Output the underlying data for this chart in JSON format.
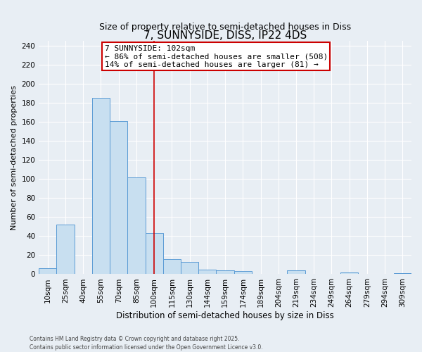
{
  "title": "7, SUNNYSIDE, DISS, IP22 4DS",
  "subtitle": "Size of property relative to semi-detached houses in Diss",
  "xlabel": "Distribution of semi-detached houses by size in Diss",
  "ylabel": "Number of semi-detached properties",
  "bar_labels": [
    "10sqm",
    "25sqm",
    "40sqm",
    "55sqm",
    "70sqm",
    "85sqm",
    "100sqm",
    "115sqm",
    "130sqm",
    "144sqm",
    "159sqm",
    "174sqm",
    "189sqm",
    "204sqm",
    "219sqm",
    "234sqm",
    "249sqm",
    "264sqm",
    "279sqm",
    "294sqm",
    "309sqm"
  ],
  "bar_values": [
    6,
    52,
    0,
    185,
    161,
    102,
    43,
    16,
    13,
    5,
    4,
    3,
    0,
    0,
    4,
    0,
    0,
    2,
    0,
    0,
    1
  ],
  "bar_color": "#c8dff0",
  "bar_edge_color": "#5b9bd5",
  "vline_x_pos": 6.0,
  "vline_color": "#cc0000",
  "annotation_title": "7 SUNNYSIDE: 102sqm",
  "annotation_line1": "← 86% of semi-detached houses are smaller (508)",
  "annotation_line2": "14% of semi-detached houses are larger (81) →",
  "annotation_box_color": "white",
  "annotation_box_edge": "#cc0000",
  "ylim": [
    0,
    245
  ],
  "yticks": [
    0,
    20,
    40,
    60,
    80,
    100,
    120,
    140,
    160,
    180,
    200,
    220,
    240
  ],
  "footnote1": "Contains HM Land Registry data © Crown copyright and database right 2025.",
  "footnote2": "Contains public sector information licensed under the Open Government Licence v3.0.",
  "background_color": "#e8eef4",
  "grid_color": "#ffffff",
  "title_fontsize": 11,
  "subtitle_fontsize": 9,
  "ylabel_fontsize": 8,
  "xlabel_fontsize": 8.5,
  "tick_fontsize": 7.5,
  "annot_fontsize": 8
}
